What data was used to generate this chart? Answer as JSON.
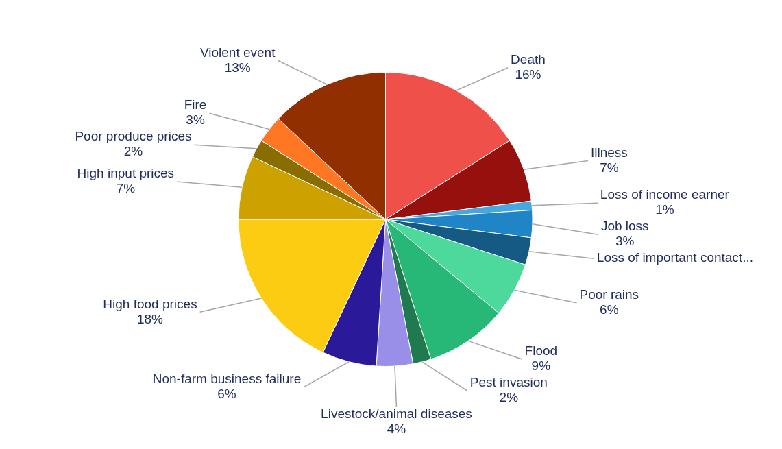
{
  "chart_data": {
    "type": "pie",
    "categories": [
      "Death",
      "Illness",
      "Loss of income earner",
      "Job loss",
      "Loss of important contact...",
      "Poor rains",
      "Flood",
      "Pest invasion",
      "Livestock/animal diseases",
      "Non-farm business failure",
      "High food prices",
      "High input prices",
      "Poor produce prices",
      "Fire",
      "Violent event"
    ],
    "values": [
      16,
      7,
      1,
      3,
      3,
      6,
      9,
      2,
      4,
      6,
      18,
      7,
      2,
      3,
      13
    ],
    "value_labels": [
      "16%",
      "7%",
      "1%",
      "3%",
      null,
      "6%",
      "9%",
      "2%",
      "4%",
      "6%",
      "18%",
      "7%",
      "2%",
      "3%",
      "13%"
    ],
    "colors": [
      "#f0504a",
      "#96100e",
      "#47a8e0",
      "#2085c6",
      "#155a85",
      "#4dd89c",
      "#27b877",
      "#1f7a50",
      "#9a8fe8",
      "#2a1a9a",
      "#fccc12",
      "#cda200",
      "#8a6d00",
      "#ff7722",
      "#922f00"
    ],
    "legend": false
  }
}
